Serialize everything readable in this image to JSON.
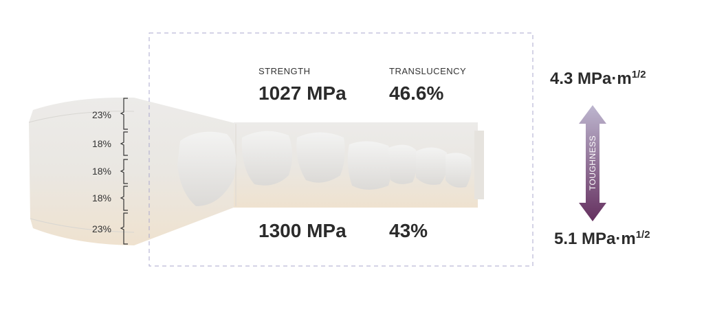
{
  "colors": {
    "frame_dash": "#aaa7cc",
    "arrow_top": "#b9b1cc",
    "arrow_bottom": "#6a3366"
  },
  "layers": [
    "23%",
    "18%",
    "18%",
    "18%",
    "23%"
  ],
  "top": {
    "strength_label": "STRENGTH",
    "strength_value": "1027 MPa",
    "translucency_label": "TRANSLUCENCY",
    "translucency_value": "46.6%"
  },
  "bottom": {
    "strength_value": "1300 MPa",
    "translucency_value": "43%"
  },
  "toughness": {
    "label": "TOUGHNESS",
    "top_value": "4.3 MPa·m",
    "bottom_value": "5.1 MPa·m",
    "exponent": "1/2"
  }
}
